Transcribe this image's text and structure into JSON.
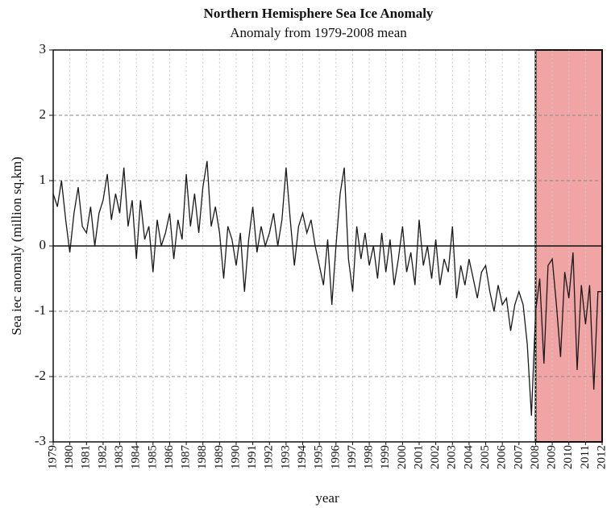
{
  "chart_data": {
    "type": "line",
    "title": "Northern Hemisphere Sea Ice Anomaly",
    "subtitle": "Anomaly from 1979-2008 mean",
    "xlabel": "year",
    "ylabel": "Sea iec anomaly (million sq.km)",
    "x": [
      1979,
      1979.25,
      1979.5,
      1979.75,
      1980,
      1980.25,
      1980.5,
      1980.75,
      1981,
      1981.25,
      1981.5,
      1981.75,
      1982,
      1982.25,
      1982.5,
      1982.75,
      1983,
      1983.25,
      1983.5,
      1983.75,
      1984,
      1984.25,
      1984.5,
      1984.75,
      1985,
      1985.25,
      1985.5,
      1985.75,
      1986,
      1986.25,
      1986.5,
      1986.75,
      1987,
      1987.25,
      1987.5,
      1987.75,
      1988,
      1988.25,
      1988.5,
      1988.75,
      1989,
      1989.25,
      1989.5,
      1989.75,
      1990,
      1990.25,
      1990.5,
      1990.75,
      1991,
      1991.25,
      1991.5,
      1991.75,
      1992,
      1992.25,
      1992.5,
      1992.75,
      1993,
      1993.25,
      1993.5,
      1993.75,
      1994,
      1994.25,
      1994.5,
      1994.75,
      1995,
      1995.25,
      1995.5,
      1995.75,
      1996,
      1996.25,
      1996.5,
      1996.75,
      1997,
      1997.25,
      1997.5,
      1997.75,
      1998,
      1998.25,
      1998.5,
      1998.75,
      1999,
      1999.25,
      1999.5,
      1999.75,
      2000,
      2000.25,
      2000.5,
      2000.75,
      2001,
      2001.25,
      2001.5,
      2001.75,
      2002,
      2002.25,
      2002.5,
      2002.75,
      2003,
      2003.25,
      2003.5,
      2003.75,
      2004,
      2004.25,
      2004.5,
      2004.75,
      2005,
      2005.25,
      2005.5,
      2005.75,
      2006,
      2006.25,
      2006.5,
      2006.75,
      2007,
      2007.25,
      2007.5,
      2007.75,
      2008,
      2008.25,
      2008.5,
      2008.75,
      2009,
      2009.25,
      2009.5,
      2009.75,
      2010,
      2010.25,
      2010.5,
      2010.75,
      2011,
      2011.25,
      2011.5,
      2011.75,
      2012
    ],
    "series": [
      {
        "color": "#1a1a1a",
        "values": [
          0.8,
          0.6,
          1.0,
          0.4,
          -0.1,
          0.5,
          0.9,
          0.3,
          0.2,
          0.6,
          0.0,
          0.5,
          0.7,
          1.1,
          0.4,
          0.8,
          0.5,
          1.2,
          0.3,
          0.7,
          -0.2,
          0.7,
          0.1,
          0.3,
          -0.4,
          0.4,
          0.0,
          0.2,
          0.5,
          -0.2,
          0.4,
          0.1,
          1.1,
          0.3,
          0.8,
          0.2,
          0.9,
          1.3,
          0.3,
          0.6,
          0.2,
          -0.5,
          0.3,
          0.1,
          -0.3,
          0.2,
          -0.7,
          0.1,
          0.6,
          -0.1,
          0.3,
          0.0,
          0.2,
          0.5,
          0.0,
          0.4,
          1.2,
          0.4,
          -0.3,
          0.3,
          0.5,
          0.2,
          0.4,
          0.0,
          -0.3,
          -0.6,
          0.1,
          -0.9,
          0.0,
          0.8,
          1.2,
          -0.2,
          -0.7,
          0.3,
          -0.2,
          0.2,
          -0.3,
          0.0,
          -0.5,
          0.2,
          -0.4,
          0.1,
          -0.6,
          -0.2,
          0.3,
          -0.4,
          -0.1,
          -0.6,
          0.4,
          -0.3,
          0.0,
          -0.5,
          0.1,
          -0.6,
          -0.2,
          -0.4,
          0.3,
          -0.8,
          -0.3,
          -0.6,
          -0.2,
          -0.5,
          -0.8,
          -0.4,
          -0.3,
          -0.7,
          -1.0,
          -0.6,
          -0.9,
          -0.8,
          -1.3,
          -0.9,
          -0.7,
          -0.9,
          -1.5,
          -2.6,
          -1.0,
          -0.5,
          -1.8,
          -0.3,
          -0.2,
          -0.9,
          -1.7,
          -0.4,
          -0.8,
          -0.1,
          -1.9,
          -0.6,
          -1.2,
          -0.6,
          -2.2,
          -0.7,
          -0.7
        ]
      }
    ],
    "xlim": [
      1979,
      2012
    ],
    "xticks": [
      1979,
      1980,
      1981,
      1982,
      1983,
      1984,
      1985,
      1986,
      1987,
      1988,
      1989,
      1990,
      1991,
      1992,
      1993,
      1994,
      1995,
      1996,
      1997,
      1998,
      1999,
      2000,
      2001,
      2002,
      2003,
      2004,
      2005,
      2006,
      2007,
      2008,
      2009,
      2010,
      2011,
      2012
    ],
    "ylim": [
      -3,
      3
    ],
    "yticks": [
      -3,
      -2,
      -1,
      0,
      1,
      2,
      3
    ],
    "grid": true,
    "highlight": {
      "range": [
        2008,
        2012
      ],
      "color": "#f0a4a4"
    }
  }
}
